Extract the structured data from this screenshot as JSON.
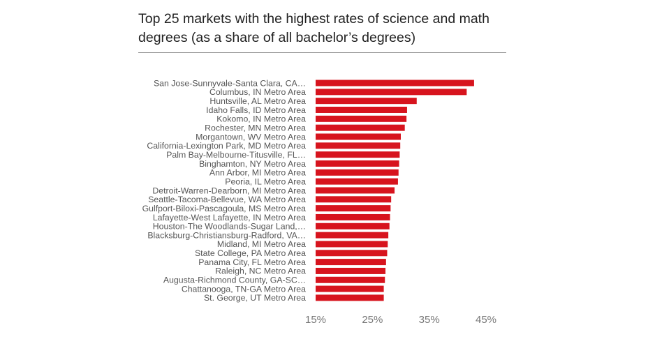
{
  "chart_data": {
    "type": "bar",
    "orientation": "horizontal",
    "title": "Top 25 markets with the highest rates of science and math degrees (as a share of all bachelor’s degrees)",
    "xlabel": "",
    "ylabel": "",
    "xlim": [
      15,
      45
    ],
    "xticks": [
      15,
      25,
      35,
      45
    ],
    "xtick_labels": [
      "15%",
      "25%",
      "35%",
      "45%"
    ],
    "grid": false,
    "legend": "none",
    "bar_color": "#d7141e",
    "categories": [
      "San Jose-Sunnyvale-Santa Clara, CA…",
      "Columbus, IN Metro Area",
      "Huntsville, AL Metro Area",
      "Idaho Falls, ID Metro Area",
      "Kokomo, IN Metro Area",
      "Rochester, MN Metro Area",
      "Morgantown, WV Metro Area",
      "California-Lexington Park, MD Metro Area",
      "Palm Bay-Melbourne-Titusville, FL…",
      "Binghamton, NY Metro Area",
      "Ann Arbor, MI Metro Area",
      "Peoria, IL Metro Area",
      "Detroit-Warren-Dearborn, MI Metro Area",
      "Seattle-Tacoma-Bellevue, WA Metro Area",
      "Gulfport-Biloxi-Pascagoula, MS Metro Area",
      "Lafayette-West Lafayette, IN Metro Area",
      "Houston-The Woodlands-Sugar Land,…",
      "Blacksburg-Christiansburg-Radford, VA…",
      "Midland, MI Metro Area",
      "State College, PA Metro Area",
      "Panama City, FL Metro Area",
      "Raleigh, NC Metro Area",
      "Augusta-Richmond County, GA-SC…",
      "Chattanooga, TN-GA Metro Area",
      "St. George, UT Metro Area"
    ],
    "values": [
      42.9,
      41.6,
      32.8,
      31.1,
      31.0,
      30.7,
      30.0,
      29.9,
      29.8,
      29.7,
      29.6,
      29.5,
      28.9,
      28.3,
      28.2,
      28.1,
      28.0,
      27.8,
      27.7,
      27.6,
      27.4,
      27.3,
      27.2,
      27.0,
      27.0
    ]
  }
}
